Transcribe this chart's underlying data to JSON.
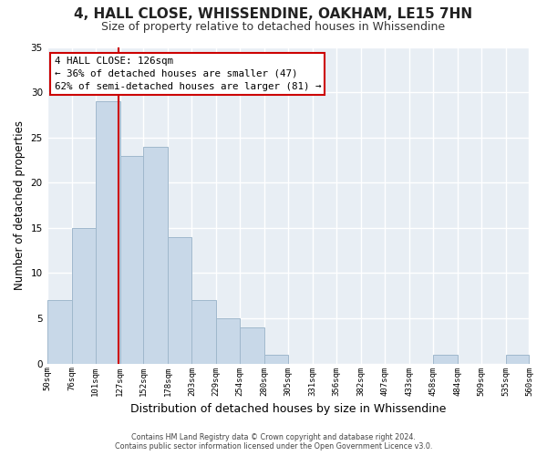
{
  "title": "4, HALL CLOSE, WHISSENDINE, OAKHAM, LE15 7HN",
  "subtitle": "Size of property relative to detached houses in Whissendine",
  "xlabel": "Distribution of detached houses by size in Whissendine",
  "ylabel": "Number of detached properties",
  "bin_edges": [
    50,
    76,
    101,
    127,
    152,
    178,
    203,
    229,
    254,
    280,
    305,
    331,
    356,
    382,
    407,
    433,
    458,
    484,
    509,
    535,
    560
  ],
  "bin_labels": [
    "50sqm",
    "76sqm",
    "101sqm",
    "127sqm",
    "152sqm",
    "178sqm",
    "203sqm",
    "229sqm",
    "254sqm",
    "280sqm",
    "305sqm",
    "331sqm",
    "356sqm",
    "382sqm",
    "407sqm",
    "433sqm",
    "458sqm",
    "484sqm",
    "509sqm",
    "535sqm",
    "560sqm"
  ],
  "counts": [
    7,
    15,
    29,
    23,
    24,
    14,
    7,
    5,
    4,
    1,
    0,
    0,
    0,
    0,
    0,
    0,
    1,
    0,
    0,
    1
  ],
  "bar_color": "#c8d8e8",
  "bar_edge_color": "#a0b8cc",
  "vline_x": 126,
  "vline_color": "#cc0000",
  "ylim": [
    0,
    35
  ],
  "yticks": [
    0,
    5,
    10,
    15,
    20,
    25,
    30,
    35
  ],
  "annotation_title": "4 HALL CLOSE: 126sqm",
  "annotation_line1": "← 36% of detached houses are smaller (47)",
  "annotation_line2": "62% of semi-detached houses are larger (81) →",
  "annotation_box_color": "#ffffff",
  "annotation_box_edge": "#cc0000",
  "footer_line1": "Contains HM Land Registry data © Crown copyright and database right 2024.",
  "footer_line2": "Contains public sector information licensed under the Open Government Licence v3.0.",
  "background_color": "#ffffff",
  "plot_bg_color": "#e8eef4",
  "grid_color": "#ffffff",
  "title_fontsize": 11,
  "subtitle_fontsize": 9,
  "xlabel_fontsize": 9,
  "ylabel_fontsize": 8.5
}
